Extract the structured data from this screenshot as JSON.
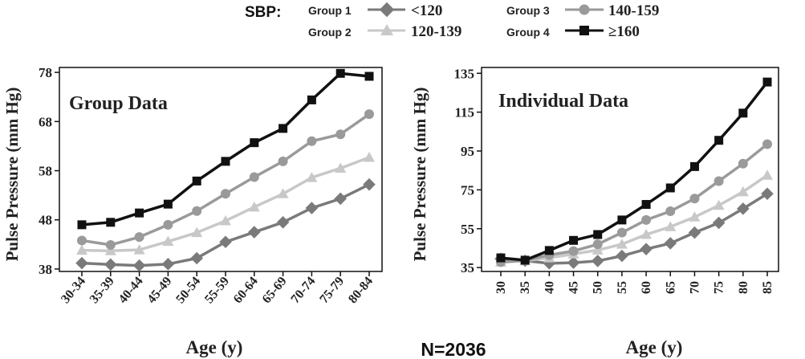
{
  "legend": {
    "heading": "SBP:",
    "entries": [
      {
        "group": "Group 1",
        "range": "<120",
        "marker": "diamond",
        "color": "#7a7a7a"
      },
      {
        "group": "Group 2",
        "range": "120-139",
        "marker": "triangle",
        "color": "#c8c8c8"
      },
      {
        "group": "Group 3",
        "range": "140-159",
        "marker": "circle",
        "color": "#9a9a9a"
      },
      {
        "group": "Group 4",
        "range": "≥160",
        "marker": "square",
        "color": "#111111"
      }
    ]
  },
  "footer": {
    "n_label": "N=2036"
  },
  "chart_data": [
    {
      "type": "line",
      "title": "Group Data",
      "xlabel": "Age (y)",
      "ylabel": "Pulse Pressure (mm Hg)",
      "categories": [
        "30-34",
        "35-39",
        "40-44",
        "45-49",
        "50-54",
        "55-59",
        "60-64",
        "65-69",
        "70-74",
        "75-79",
        "80-84"
      ],
      "y_ticks": [
        38,
        48,
        58,
        68,
        78
      ],
      "ylim": [
        37.5,
        79
      ],
      "grid": false,
      "series": [
        {
          "name": "Group 1",
          "marker": "diamond",
          "color": "#7a7a7a",
          "values": [
            39.2,
            38.9,
            38.7,
            39.0,
            40.2,
            43.5,
            45.5,
            47.5,
            50.4,
            52.3,
            55.2
          ]
        },
        {
          "name": "Group 2",
          "marker": "triangle",
          "color": "#c8c8c8",
          "values": [
            41.8,
            41.7,
            41.9,
            43.6,
            45.4,
            47.8,
            50.6,
            53.3,
            56.6,
            58.5,
            60.7
          ]
        },
        {
          "name": "Group 3",
          "marker": "circle",
          "color": "#9a9a9a",
          "values": [
            43.8,
            42.9,
            44.5,
            47.0,
            49.8,
            53.3,
            56.7,
            59.9,
            64.0,
            65.4,
            69.5
          ]
        },
        {
          "name": "Group 4",
          "marker": "square",
          "color": "#111111",
          "values": [
            47.0,
            47.5,
            49.4,
            51.2,
            55.9,
            59.9,
            63.7,
            66.6,
            72.4,
            77.8,
            77.2
          ]
        }
      ]
    },
    {
      "type": "line",
      "title": "Individual Data",
      "xlabel": "Age (y)",
      "ylabel": "Pulse Pressure (mm Hg)",
      "categories": [
        "30",
        "35",
        "40",
        "45",
        "50",
        "55",
        "60",
        "65",
        "70",
        "75",
        "80",
        "85"
      ],
      "y_ticks": [
        35,
        55,
        75,
        95,
        115,
        135
      ],
      "ylim": [
        33,
        138
      ],
      "grid": false,
      "series": [
        {
          "name": "Group 1",
          "marker": "diamond",
          "color": "#7a7a7a",
          "values": [
            39.5,
            38.5,
            37.2,
            37.5,
            38.4,
            41.0,
            44.5,
            47.5,
            53.0,
            58.0,
            65.3,
            73.0
          ]
        },
        {
          "name": "Group 2",
          "marker": "triangle",
          "color": "#c8c8c8",
          "values": [
            37.8,
            38.5,
            40.0,
            42.0,
            44.0,
            47.0,
            52.0,
            56.0,
            61.0,
            67.0,
            74.0,
            82.5
          ]
        },
        {
          "name": "Group 3",
          "marker": "circle",
          "color": "#9a9a9a",
          "values": [
            37.8,
            38.6,
            41.5,
            43.5,
            47.0,
            53.0,
            59.5,
            64.0,
            70.5,
            79.5,
            88.5,
            98.5
          ]
        },
        {
          "name": "Group 4",
          "marker": "square",
          "color": "#111111",
          "values": [
            40.0,
            38.8,
            43.8,
            49.0,
            52.0,
            59.5,
            67.5,
            76.0,
            87.0,
            100.5,
            114.5,
            130.5
          ]
        }
      ]
    }
  ]
}
